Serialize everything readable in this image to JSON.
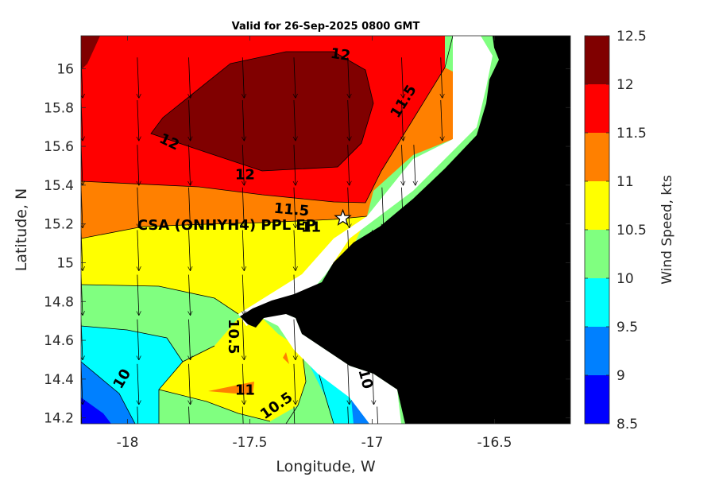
{
  "title": "Valid for 26-Sep-2025 0800 GMT",
  "station_label": "CSA (ONHYH4) PPL EP",
  "chart_data": {
    "type": "heatmap",
    "title": "Valid for 26-Sep-2025 0800 GMT",
    "xlabel": "Longitude, W",
    "ylabel": "Latitude, N",
    "xlim": [
      -18.19,
      -16.19
    ],
    "ylim": [
      14.17,
      16.17
    ],
    "xticks": [
      -18,
      -17.5,
      -17,
      -16.5
    ],
    "xtick_labels": [
      "-18",
      "-17.5",
      "-17",
      "-16.5"
    ],
    "yticks": [
      14.2,
      14.4,
      14.6,
      14.8,
      15,
      15.2,
      15.4,
      15.6,
      15.8,
      16
    ],
    "ytick_labels": [
      "14.2",
      "14.4",
      "14.6",
      "14.8",
      "15",
      "15.2",
      "15.4",
      "15.6",
      "15.8",
      "16"
    ],
    "colorbar": {
      "label": "Wind Speed, kts",
      "levels": [
        8.5,
        9,
        9.5,
        10,
        10.5,
        11,
        11.5,
        12,
        12.5
      ],
      "tick_labels": [
        "8.5",
        "9",
        "9.5",
        "10",
        "10.5",
        "11",
        "11.5",
        "12",
        "12.5"
      ],
      "colors": [
        "#0000ff",
        "#0080ff",
        "#00ffff",
        "#80ff80",
        "#ffff00",
        "#ff8000",
        "#ff0000",
        "#800000"
      ]
    },
    "contour_labels": [
      {
        "text": "12",
        "lon": -17.13,
        "lat": 16.07
      },
      {
        "text": "11.5",
        "lon": -16.87,
        "lat": 15.83
      },
      {
        "text": "12",
        "lon": -17.83,
        "lat": 15.62
      },
      {
        "text": "12",
        "lon": -17.52,
        "lat": 15.45
      },
      {
        "text": "11.5",
        "lon": -17.33,
        "lat": 15.27
      },
      {
        "text": "11",
        "lon": -17.25,
        "lat": 15.18
      },
      {
        "text": "10.5",
        "lon": -17.57,
        "lat": 14.62
      },
      {
        "text": "10",
        "lon": -18.02,
        "lat": 14.4
      },
      {
        "text": "11",
        "lon": -17.52,
        "lat": 14.34
      },
      {
        "text": "10.5",
        "lon": -17.39,
        "lat": 14.26
      },
      {
        "text": "10",
        "lon": -17.03,
        "lat": 14.4
      }
    ],
    "station": {
      "name": "CSA (ONHYH4) PPL EP",
      "lon": -17.12,
      "lat": 15.23
    },
    "wind_direction": "from north (arrows pointing south)",
    "land_color": "#000000"
  }
}
